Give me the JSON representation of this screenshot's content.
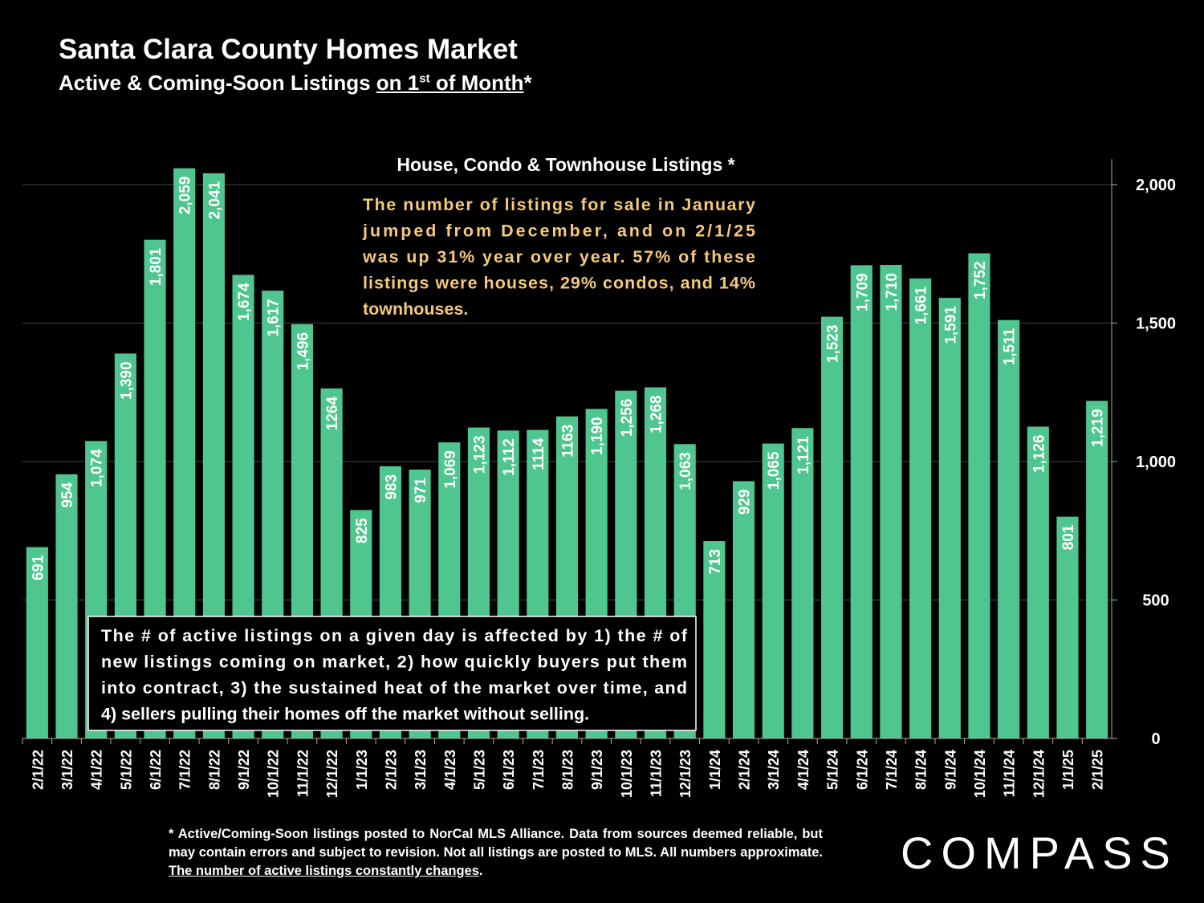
{
  "header": {
    "title": "Santa Clara County Homes Market",
    "subtitle_pre": "Active & Coming-Soon Listings ",
    "subtitle_ul_pre": "on 1",
    "subtitle_sup": "st",
    "subtitle_ul_post": " of Month",
    "subtitle_post": "*"
  },
  "chart_data": {
    "type": "bar",
    "title": "House, Condo & Townhouse Listings *",
    "categories": [
      "2/1/22",
      "3/1/22",
      "4/1/22",
      "5/1/22",
      "6/1/22",
      "7/1/22",
      "8/1/22",
      "9/1/22",
      "10/1/22",
      "11/1/22",
      "12/1/22",
      "1/1/23",
      "2/1/23",
      "3/1/23",
      "4/1/23",
      "5/1/23",
      "6/1/23",
      "7/1/23",
      "8/1/23",
      "9/1/23",
      "10/1/23",
      "11/1/23",
      "12/1/23",
      "1/1/24",
      "2/1/24",
      "3/1/24",
      "4/1/24",
      "5/1/24",
      "6/1/24",
      "7/1/24",
      "8/1/24",
      "9/1/24",
      "10/1/24",
      "11/1/24",
      "12/1/24",
      "1/1/25",
      "2/1/25"
    ],
    "values": [
      691,
      954,
      1074,
      1390,
      1801,
      2059,
      2041,
      1674,
      1617,
      1496,
      1264,
      825,
      983,
      971,
      1069,
      1123,
      1112,
      1114,
      1163,
      1190,
      1256,
      1268,
      1063,
      713,
      929,
      1065,
      1121,
      1523,
      1709,
      1710,
      1661,
      1591,
      1752,
      1511,
      1126,
      801,
      1219
    ],
    "labels": [
      "691",
      "954",
      "1,074",
      "1,390",
      "1,801",
      "2,059",
      "2,041",
      "1,674",
      "1,617",
      "1,496",
      "1264",
      "825",
      "983",
      "971",
      "1,069",
      "1,123",
      "1,112",
      "1114",
      "1163",
      "1,190",
      "1,256",
      "1,268",
      "1,063",
      "713",
      "929",
      "1,065",
      "1,121",
      "1,523",
      "1,709",
      "1,710",
      "1,661",
      "1,591",
      "1,752",
      "1,511",
      "1,126",
      "801",
      "1,219"
    ],
    "ylim": [
      0,
      2100
    ],
    "yticks": [
      0,
      500,
      1000,
      1500,
      2000
    ],
    "ytick_labels": [
      "0",
      "500",
      "1,000",
      "1,500",
      "2,000"
    ],
    "y_axis_side": "right",
    "grid": true,
    "bar_color": "#4fc68f",
    "text_color": "#ffffff",
    "note_color": "#f5c97a",
    "annotations": [
      "The number of listings for sale in January jumped from December, and on 2/1/25 was up 31% year over year. 57% of these listings were houses, 29% condos, and 14% townhouses.",
      "The # of active listings on a given day is affected by 1) the # of new listings coming on market, 2) how quickly buyers put them into contract, 3) the sustained heat of the market over time, and 4) sellers pulling their homes off the market without selling."
    ]
  },
  "footnote": {
    "text": "* Active/Coming-Soon listings posted to NorCal MLS Alliance.  Data from sources deemed reliable, but may contain errors and subject to revision.  Not all listings are posted to MLS. All numbers approximate. ",
    "link": "The number of active listings constantly changes",
    "end": "."
  },
  "logo": {
    "text": "COMPASS"
  }
}
